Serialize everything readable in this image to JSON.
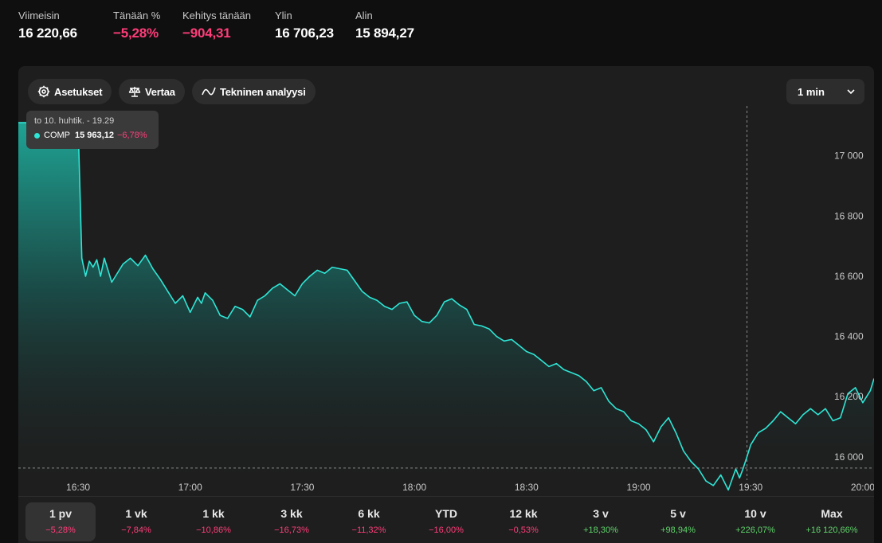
{
  "stats": [
    {
      "label": "Viimeisin",
      "value": "16 220,66",
      "tone": "neutral"
    },
    {
      "label": "Tänään %",
      "value": "−5,28%",
      "tone": "neg"
    },
    {
      "label": "Kehitys tänään",
      "value": "−904,31",
      "tone": "neg"
    },
    {
      "label": "Ylin",
      "value": "16 706,23",
      "tone": "neutral"
    },
    {
      "label": "Alin",
      "value": "15 894,27",
      "tone": "neutral"
    }
  ],
  "toolbar": {
    "settings_label": "Asetukset",
    "compare_label": "Vertaa",
    "technical_label": "Tekninen analyysi",
    "interval_value": "1 min"
  },
  "tooltip": {
    "date": "to 10. huhtik. - 19.29",
    "symbol": "COMP",
    "value": "15 963,12",
    "change": "−6,78%"
  },
  "colors": {
    "line": "#2ee6d6",
    "negative": "#ff3d7a",
    "positive": "#5fd36a",
    "background": "#0f0f0f",
    "panel": "#1e1e1e"
  },
  "chart_data": {
    "type": "area",
    "y_ticks": [
      {
        "value": 17000,
        "label": "17 000"
      },
      {
        "value": 16800,
        "label": "16 800"
      },
      {
        "value": 16600,
        "label": "16 600"
      },
      {
        "value": 16400,
        "label": "16 400"
      },
      {
        "value": 16200,
        "label": "16 200"
      },
      {
        "value": 16000,
        "label": "16 000"
      }
    ],
    "x_ticks": [
      {
        "value": "16:30",
        "label": "16:30"
      },
      {
        "value": "17:00",
        "label": "17:00"
      },
      {
        "value": "17:30",
        "label": "17:30"
      },
      {
        "value": "18:00",
        "label": "18:00"
      },
      {
        "value": "18:30",
        "label": "18:30"
      },
      {
        "value": "19:00",
        "label": "19:00"
      },
      {
        "value": "19:30",
        "label": "19:30"
      },
      {
        "value": "20:00",
        "label": "20:00"
      }
    ],
    "x_range": [
      "16:14",
      "20:03"
    ],
    "ylim": [
      15870,
      17150
    ],
    "reference_level": 15963,
    "crosshair_time": "19:29",
    "series": [
      {
        "x": [
          "16:14",
          "16:30",
          "16:31",
          "16:32",
          "16:33",
          "16:34",
          "16:35",
          "16:36",
          "16:37",
          "16:38",
          "16:39",
          "16:40",
          "16:42",
          "16:44",
          "16:46",
          "16:48",
          "16:50",
          "16:52",
          "16:54",
          "16:56",
          "16:58",
          "17:00",
          "17:02",
          "17:03",
          "17:04",
          "17:06",
          "17:08",
          "17:10",
          "17:12",
          "17:14",
          "17:16",
          "17:18",
          "17:20",
          "17:22",
          "17:24",
          "17:26",
          "17:28",
          "17:30",
          "17:32",
          "17:34",
          "17:36",
          "17:38",
          "17:40",
          "17:42",
          "17:44",
          "17:46",
          "17:48",
          "17:50",
          "17:52",
          "17:54",
          "17:56",
          "17:58",
          "18:00",
          "18:02",
          "18:04",
          "18:06",
          "18:08",
          "18:10",
          "18:12",
          "18:14",
          "18:16",
          "18:18",
          "18:20",
          "18:22",
          "18:24",
          "18:26",
          "18:28",
          "18:30",
          "18:32",
          "18:34",
          "18:36",
          "18:38",
          "18:40",
          "18:42",
          "18:44",
          "18:46",
          "18:48",
          "18:50",
          "18:52",
          "18:54",
          "18:56",
          "18:58",
          "19:00",
          "19:02",
          "19:04",
          "19:06",
          "19:08",
          "19:10",
          "19:12",
          "19:14",
          "19:16",
          "19:18",
          "19:20",
          "19:22",
          "19:24",
          "19:26",
          "19:27",
          "19:28",
          "19:29",
          "19:30",
          "19:32",
          "19:34",
          "19:36",
          "19:38",
          "19:40",
          "19:42",
          "19:44",
          "19:46",
          "19:48",
          "19:50",
          "19:52",
          "19:54",
          "19:56",
          "19:58",
          "20:00",
          "20:02",
          "20:03"
        ],
        "y": [
          17110,
          17110,
          16660,
          16600,
          16650,
          16630,
          16655,
          16600,
          16660,
          16620,
          16580,
          16600,
          16640,
          16660,
          16635,
          16670,
          16625,
          16590,
          16550,
          16510,
          16535,
          16480,
          16530,
          16510,
          16545,
          16520,
          16470,
          16460,
          16500,
          16490,
          16465,
          16520,
          16535,
          16560,
          16575,
          16555,
          16535,
          16575,
          16600,
          16620,
          16610,
          16630,
          16625,
          16620,
          16585,
          16550,
          16530,
          16520,
          16500,
          16490,
          16510,
          16515,
          16470,
          16450,
          16445,
          16470,
          16515,
          16525,
          16505,
          16490,
          16440,
          16435,
          16425,
          16400,
          16385,
          16390,
          16370,
          16350,
          16340,
          16320,
          16300,
          16310,
          16290,
          16280,
          16270,
          16250,
          16220,
          16230,
          16185,
          16160,
          16150,
          16120,
          16110,
          16090,
          16050,
          16100,
          16130,
          16080,
          16020,
          15985,
          15960,
          15920,
          15905,
          15940,
          15890,
          15960,
          15930,
          15963,
          16000,
          16040,
          16080,
          16095,
          16120,
          16150,
          16130,
          16110,
          16140,
          16160,
          16140,
          16160,
          16120,
          16130,
          16210,
          16230,
          16180,
          16220,
          16260
        ]
      }
    ]
  },
  "ranges": [
    {
      "label": "1 pv",
      "change": "−5,28%",
      "tone": "neg",
      "selected": true
    },
    {
      "label": "1 vk",
      "change": "−7,84%",
      "tone": "neg"
    },
    {
      "label": "1 kk",
      "change": "−10,86%",
      "tone": "neg"
    },
    {
      "label": "3 kk",
      "change": "−16,73%",
      "tone": "neg"
    },
    {
      "label": "6 kk",
      "change": "−11,32%",
      "tone": "neg"
    },
    {
      "label": "YTD",
      "change": "−16,00%",
      "tone": "neg"
    },
    {
      "label": "12 kk",
      "change": "−0,53%",
      "tone": "neg"
    },
    {
      "label": "3 v",
      "change": "+18,30%",
      "tone": "pos"
    },
    {
      "label": "5 v",
      "change": "+98,94%",
      "tone": "pos"
    },
    {
      "label": "10 v",
      "change": "+226,07%",
      "tone": "pos"
    },
    {
      "label": "Max",
      "change": "+16 120,66%",
      "tone": "pos"
    }
  ]
}
